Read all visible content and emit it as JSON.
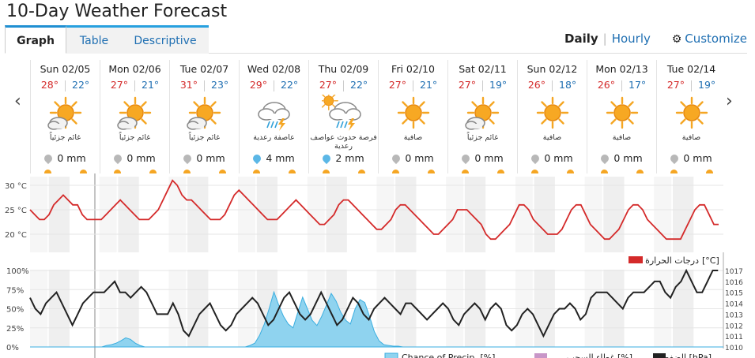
{
  "title": "10-Day Weather Forecast",
  "tabs": [
    {
      "label": "Graph",
      "active": true
    },
    {
      "label": "Table",
      "active": false
    },
    {
      "label": "Descriptive",
      "active": false
    }
  ],
  "view": {
    "daily": "Daily",
    "hourly": "Hourly",
    "customize": "Customize"
  },
  "icons": {
    "prev": "chevron-left-icon",
    "next": "chevron-right-icon",
    "gear": "gear-icon"
  },
  "days": [
    {
      "date": "Sun 02/05",
      "hi": "28°",
      "lo": "22°",
      "icon": "partly-cloudy",
      "cond": "غائم جزئياً",
      "precip": "0 mm",
      "wet": false
    },
    {
      "date": "Mon 02/06",
      "hi": "27°",
      "lo": "21°",
      "icon": "partly-cloudy",
      "cond": "غائم جزئياً",
      "precip": "0 mm",
      "wet": false
    },
    {
      "date": "Tue 02/07",
      "hi": "31°",
      "lo": "23°",
      "icon": "partly-cloudy",
      "cond": "غائم جزئياً",
      "precip": "0 mm",
      "wet": false
    },
    {
      "date": "Wed 02/08",
      "hi": "29°",
      "lo": "22°",
      "icon": "thunderstorm",
      "cond": "عاصفة رعدية",
      "precip": "4 mm",
      "wet": true
    },
    {
      "date": "Thu 02/09",
      "hi": "27°",
      "lo": "22°",
      "icon": "sun-thunderstorm",
      "cond": "فرصة حدوث عواصف رعدية",
      "precip": "2 mm",
      "wet": true
    },
    {
      "date": "Fri 02/10",
      "hi": "27°",
      "lo": "21°",
      "icon": "sunny",
      "cond": "صافية",
      "precip": "0 mm",
      "wet": false
    },
    {
      "date": "Sat 02/11",
      "hi": "27°",
      "lo": "19°",
      "icon": "partly-cloudy",
      "cond": "غائم جزئياً",
      "precip": "0 mm",
      "wet": false
    },
    {
      "date": "Sun 02/12",
      "hi": "26°",
      "lo": "18°",
      "icon": "sunny",
      "cond": "صافية",
      "precip": "0 mm",
      "wet": false
    },
    {
      "date": "Mon 02/13",
      "hi": "26°",
      "lo": "17°",
      "icon": "sunny",
      "cond": "صافية",
      "precip": "0 mm",
      "wet": false
    },
    {
      "date": "Tue 02/14",
      "hi": "27°",
      "lo": "19°",
      "icon": "sunny",
      "cond": "صافية",
      "precip": "0 mm",
      "wet": false
    }
  ],
  "colors": {
    "temp": "#d42a2a",
    "pressure": "#222222",
    "precip": "#8fd3ef",
    "precip_line": "#3aaee0",
    "cloud": "#c896c8",
    "hi": "#d42a2a",
    "lo": "#1f6fb2"
  },
  "chart_data": [
    {
      "type": "line",
      "ylabel": "",
      "yticks": [
        "30 °C",
        "25 °C",
        "20 °C"
      ],
      "ylim": [
        18,
        31
      ],
      "legend": "درجات الحرارة",
      "legend_unit": "[°C]",
      "series": [
        {
          "name": "درجات الحرارة",
          "hours_step": 6,
          "values": [
            25,
            24,
            23,
            23,
            24,
            26,
            27,
            28,
            27,
            26,
            26,
            24,
            23,
            23,
            23,
            23,
            24,
            25,
            26,
            27,
            26,
            25,
            24,
            23,
            23,
            23,
            24,
            25,
            27,
            29,
            31,
            30,
            28,
            27,
            27,
            26,
            25,
            24,
            23,
            23,
            23,
            24,
            26,
            28,
            29,
            28,
            27,
            26,
            25,
            24,
            23,
            23,
            23,
            24,
            25,
            26,
            27,
            26,
            25,
            24,
            23,
            22,
            22,
            23,
            24,
            26,
            27,
            27,
            26,
            25,
            24,
            23,
            22,
            21,
            21,
            22,
            23,
            25,
            26,
            26,
            25,
            24,
            23,
            22,
            21,
            20,
            20,
            21,
            22,
            23,
            25,
            25,
            25,
            24,
            23,
            22,
            20,
            19,
            19,
            20,
            21,
            22,
            24,
            26,
            26,
            25,
            23,
            22,
            21,
            20,
            20,
            20,
            21,
            23,
            25,
            26,
            26,
            24,
            22,
            21,
            20,
            19,
            19,
            20,
            21,
            23,
            25,
            26,
            26,
            25,
            23,
            22,
            21,
            20,
            19,
            19,
            19,
            19,
            21,
            23,
            25,
            26,
            26,
            24,
            22,
            22
          ]
        }
      ]
    },
    {
      "type": "line",
      "yticks_left": [
        "100%",
        "75%",
        "50%",
        "25%",
        "0%"
      ],
      "yticks_right": [
        "1017",
        "1016",
        "1015",
        "1014",
        "1013",
        "1012",
        "1011",
        "1010"
      ],
      "ylim_left": [
        0,
        100
      ],
      "ylim_right": [
        1010,
        1017
      ],
      "legend": [
        "Chance of Precip. [%]",
        "غطاء السحب [%]",
        "الضغط [hPa]"
      ],
      "series": [
        {
          "name": "Chance of Precip. [%]",
          "hours_step": 6,
          "values": [
            0,
            0,
            0,
            0,
            0,
            0,
            0,
            0,
            0,
            0,
            0,
            0,
            0,
            0,
            0,
            0,
            2,
            3,
            5,
            8,
            12,
            10,
            5,
            2,
            0,
            0,
            0,
            0,
            0,
            0,
            0,
            0,
            0,
            0,
            0,
            0,
            0,
            0,
            0,
            0,
            0,
            0,
            0,
            0,
            0,
            0,
            2,
            5,
            15,
            30,
            50,
            72,
            55,
            40,
            30,
            25,
            45,
            65,
            50,
            35,
            28,
            40,
            55,
            70,
            60,
            45,
            35,
            30,
            50,
            62,
            58,
            40,
            20,
            8,
            3,
            2,
            1,
            1,
            0,
            0,
            0,
            0,
            0,
            0,
            0,
            0,
            0,
            0,
            0,
            0,
            0,
            0,
            0,
            0,
            0,
            0,
            0,
            0,
            0,
            0,
            0,
            0,
            0,
            0,
            0,
            0,
            0,
            0,
            0,
            0,
            0,
            0,
            0,
            0,
            0,
            0,
            0,
            0,
            0,
            0,
            0,
            0,
            0,
            0,
            0,
            0,
            0,
            0,
            0,
            0,
            0,
            0,
            0,
            0,
            0,
            0,
            0,
            0,
            0,
            0,
            0,
            0,
            0,
            0,
            0
          ]
        },
        {
          "name": "الضغط [hPa]",
          "hours_step": 6,
          "values": [
            1014.5,
            1013.5,
            1013,
            1014,
            1014.5,
            1015,
            1014,
            1013,
            1012,
            1013,
            1014,
            1014.5,
            1015,
            1015,
            1015,
            1015.5,
            1016,
            1015,
            1015,
            1014.5,
            1015,
            1015.5,
            1015,
            1014,
            1013,
            1013,
            1013,
            1014,
            1013,
            1011.5,
            1011,
            1012,
            1013,
            1013.5,
            1014,
            1013,
            1012,
            1011.5,
            1012,
            1013,
            1013.5,
            1014,
            1014.5,
            1014,
            1013,
            1012,
            1012.5,
            1013.5,
            1014.5,
            1015,
            1014,
            1013,
            1012.5,
            1013,
            1014,
            1015,
            1014,
            1013,
            1012,
            1012.5,
            1013.5,
            1014.5,
            1014,
            1013,
            1012.5,
            1013.5,
            1014,
            1014.5,
            1014,
            1013.5,
            1013,
            1014,
            1014,
            1013.5,
            1013,
            1012.5,
            1013,
            1013.5,
            1014,
            1013.5,
            1012.5,
            1012,
            1013,
            1013.5,
            1014,
            1013.5,
            1012.5,
            1013.5,
            1014,
            1013.5,
            1012,
            1011.5,
            1012,
            1013,
            1013.5,
            1013,
            1012,
            1011,
            1012,
            1013,
            1013.5,
            1013.5,
            1014,
            1013.5,
            1012.5,
            1013,
            1014.5,
            1015,
            1015,
            1015,
            1014.5,
            1014,
            1013.5,
            1014.5,
            1015,
            1015,
            1015,
            1015.5,
            1016,
            1016,
            1015,
            1014.5,
            1015.5,
            1016,
            1017,
            1016,
            1015,
            1015,
            1016,
            1017,
            1017
          ]
        }
      ]
    }
  ]
}
